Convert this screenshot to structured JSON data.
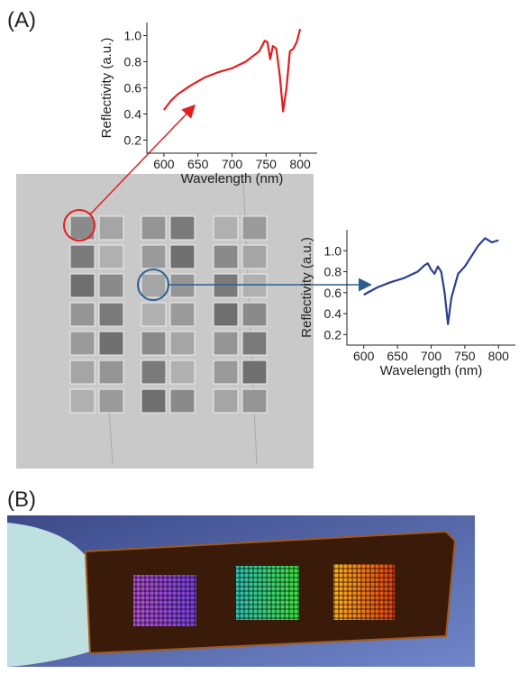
{
  "panel_labels": [
    "(A)",
    "(B)"
  ],
  "chart_data": [
    {
      "type": "line",
      "x_label": "Wavelength (nm)",
      "y_label": "Reflectivity (a.u.)",
      "xlim": [
        575,
        825
      ],
      "ylim": [
        0.1,
        1.1
      ],
      "xticks": [
        600,
        650,
        700,
        750,
        800
      ],
      "yticks": [
        0.2,
        0.4,
        0.6,
        0.8,
        {
          "value": 1,
          "label": "1.0"
        }
      ],
      "series": [
        {
          "color": "#e02020",
          "x": [
            600,
            610,
            620,
            640,
            660,
            680,
            700,
            720,
            740,
            748,
            752,
            756,
            760,
            765,
            770,
            775,
            780,
            785,
            790,
            795,
            800
          ],
          "values": [
            0.43,
            0.5,
            0.55,
            0.62,
            0.68,
            0.72,
            0.75,
            0.8,
            0.88,
            0.96,
            0.95,
            0.82,
            0.92,
            0.9,
            0.7,
            0.42,
            0.6,
            0.88,
            0.9,
            0.95,
            1.05
          ]
        }
      ]
    },
    {
      "type": "line",
      "x_label": "Wavelength (nm)",
      "y_label": "Reflectivity (a.u.)",
      "xlim": [
        575,
        825
      ],
      "ylim": [
        0.1,
        1.2
      ],
      "xticks": [
        600,
        650,
        700,
        750,
        800
      ],
      "yticks": [
        0.2,
        0.4,
        0.6,
        0.8,
        {
          "value": 1,
          "label": "1.0"
        }
      ],
      "series": [
        {
          "color": "#2b3f8f",
          "x": [
            600,
            620,
            640,
            660,
            680,
            690,
            695,
            700,
            705,
            710,
            715,
            720,
            725,
            730,
            740,
            750,
            760,
            770,
            780,
            790,
            800
          ],
          "values": [
            0.58,
            0.65,
            0.7,
            0.74,
            0.8,
            0.86,
            0.88,
            0.82,
            0.78,
            0.85,
            0.8,
            0.6,
            0.3,
            0.55,
            0.78,
            0.85,
            0.95,
            1.05,
            1.12,
            1.08,
            1.1
          ]
        }
      ]
    }
  ]
}
